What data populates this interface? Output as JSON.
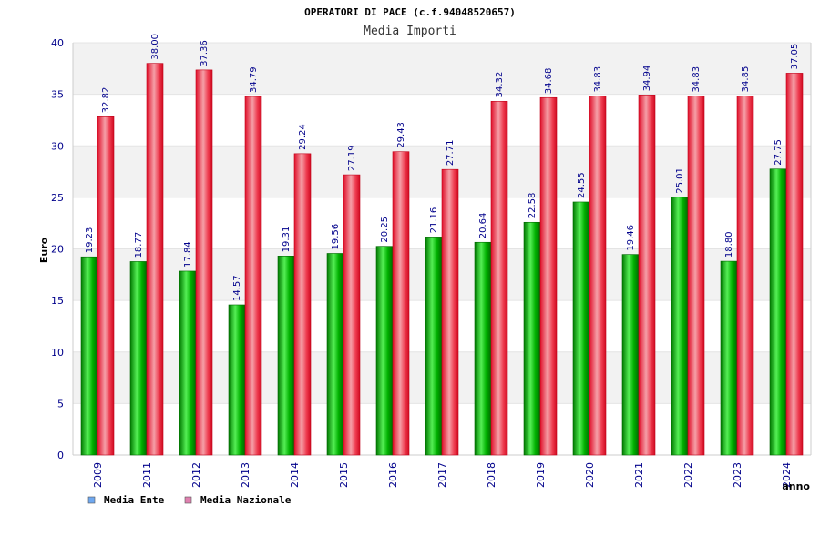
{
  "colors": {
    "ente_dark": "#007a00",
    "ente_light": "#55ee55",
    "naz_dark": "#e0102a",
    "naz_light": "#f5a0a8",
    "legend_ente": "#6fa8f0",
    "legend_naz": "#e080b0",
    "band": "#f2f2f2",
    "axis_text": "#00008b"
  },
  "chart_data": {
    "type": "bar",
    "title": "OPERATORI DI PACE (c.f.94048520657)",
    "subtitle": "Media Importi",
    "ylabel": "Euro",
    "xlabel": "anno",
    "ylim": [
      0,
      40
    ],
    "yticks": [
      0,
      5,
      10,
      15,
      20,
      25,
      30,
      35,
      40
    ],
    "categories": [
      "2009",
      "2011",
      "2012",
      "2013",
      "2014",
      "2015",
      "2016",
      "2017",
      "2018",
      "2019",
      "2020",
      "2021",
      "2022",
      "2023",
      "2024"
    ],
    "series": [
      {
        "name": "Media Ente",
        "values": [
          19.23,
          18.77,
          17.84,
          14.57,
          19.31,
          19.56,
          20.25,
          21.16,
          20.64,
          22.58,
          24.55,
          19.46,
          25.01,
          18.8,
          27.75
        ],
        "labels": [
          "19.23",
          "18.77",
          "17.84",
          "14.57",
          "19.31",
          "19.56",
          "20.25",
          "21.16",
          "20.64",
          "22.58",
          "24.55",
          "19.46",
          "25.01",
          "18.80",
          "27.75"
        ]
      },
      {
        "name": "Media Nazionale",
        "values": [
          32.82,
          38.0,
          37.36,
          34.79,
          29.24,
          27.19,
          29.43,
          27.71,
          34.32,
          34.68,
          34.83,
          34.94,
          34.83,
          34.85,
          37.05
        ],
        "labels": [
          "32.82",
          "38.00",
          "37.36",
          "34.79",
          "29.24",
          "27.19",
          "29.43",
          "27.71",
          "34.32",
          "34.68",
          "34.83",
          "34.94",
          "34.83",
          "34.85",
          "37.05"
        ]
      }
    ],
    "grid": true,
    "legend_position": "bottom-left"
  }
}
